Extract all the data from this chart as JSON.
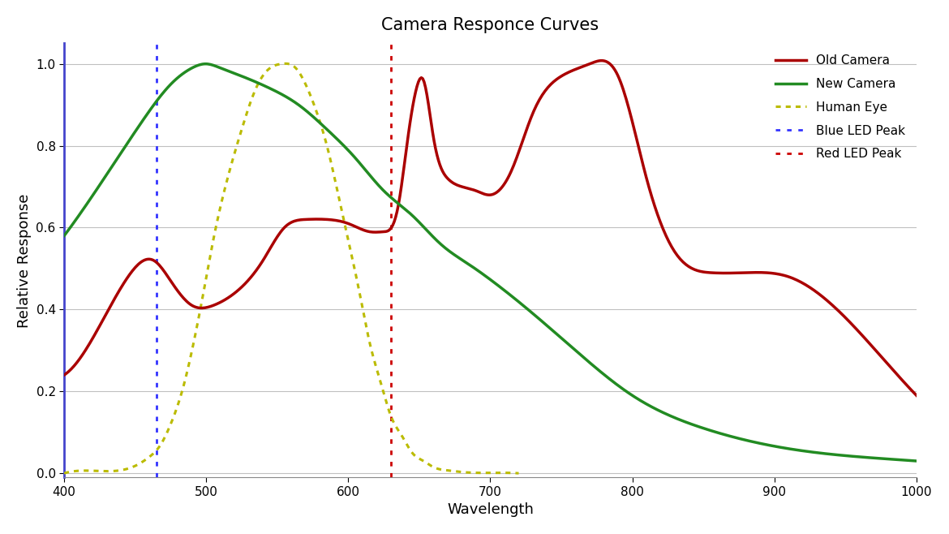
{
  "title": "Camera Responce Curves",
  "xlabel": "Wavelength",
  "ylabel": "Relative Response",
  "xlim": [
    400,
    1000
  ],
  "ylim": [
    -0.01,
    1.05
  ],
  "xticks": [
    400,
    500,
    600,
    700,
    800,
    900,
    1000
  ],
  "yticks": [
    0,
    0.2,
    0.4,
    0.6,
    0.8,
    1.0
  ],
  "blue_led_peak": 465,
  "red_led_peak": 630,
  "old_camera_color": "#AA0000",
  "new_camera_color": "#228B22",
  "human_eye_color": "#BBBB00",
  "blue_led_color": "#3333FF",
  "red_led_color": "#CC0000",
  "left_spine_color": "#4444CC",
  "background_color": "#FFFFFF",
  "legend_labels": [
    "Old Camera",
    "New Camera",
    "Human Eye",
    "Blue LED Peak",
    "Red LED Peak"
  ],
  "old_camera_x": [
    400,
    425,
    445,
    463,
    475,
    490,
    505,
    520,
    540,
    555,
    570,
    585,
    600,
    615,
    625,
    635,
    642,
    648,
    653,
    660,
    670,
    680,
    690,
    700,
    715,
    730,
    750,
    770,
    790,
    810,
    830,
    855,
    880,
    910,
    950,
    1000
  ],
  "old_camera_y": [
    0.24,
    0.36,
    0.48,
    0.52,
    0.47,
    0.41,
    0.41,
    0.44,
    0.52,
    0.6,
    0.62,
    0.62,
    0.61,
    0.59,
    0.59,
    0.65,
    0.82,
    0.94,
    0.96,
    0.82,
    0.72,
    0.7,
    0.69,
    0.68,
    0.74,
    0.88,
    0.97,
    1.0,
    0.97,
    0.72,
    0.54,
    0.49,
    0.49,
    0.48,
    0.38,
    0.19
  ],
  "new_camera_x": [
    400,
    430,
    455,
    475,
    490,
    500,
    510,
    525,
    545,
    565,
    585,
    605,
    625,
    645,
    665,
    685,
    705,
    730,
    760,
    800,
    850,
    910,
    960,
    1000
  ],
  "new_camera_y": [
    0.58,
    0.73,
    0.86,
    0.95,
    0.99,
    1.0,
    0.99,
    0.97,
    0.94,
    0.9,
    0.84,
    0.77,
    0.69,
    0.63,
    0.56,
    0.51,
    0.46,
    0.39,
    0.3,
    0.19,
    0.11,
    0.06,
    0.04,
    0.03
  ],
  "human_eye_x": [
    400,
    430,
    450,
    460,
    468,
    475,
    483,
    490,
    498,
    505,
    515,
    525,
    535,
    545,
    553,
    558,
    563,
    570,
    578,
    585,
    593,
    600,
    608,
    615,
    623,
    630,
    638,
    645,
    653,
    660,
    670,
    680,
    700,
    720
  ],
  "human_eye_y": [
    0.0,
    0.005,
    0.018,
    0.04,
    0.07,
    0.12,
    0.2,
    0.3,
    0.44,
    0.57,
    0.72,
    0.84,
    0.94,
    0.99,
    1.0,
    1.0,
    0.99,
    0.95,
    0.88,
    0.8,
    0.68,
    0.57,
    0.44,
    0.32,
    0.22,
    0.14,
    0.09,
    0.05,
    0.03,
    0.015,
    0.007,
    0.003,
    0.001,
    0.0
  ],
  "figsize": [
    11.7,
    6.58
  ],
  "dpi": 100
}
